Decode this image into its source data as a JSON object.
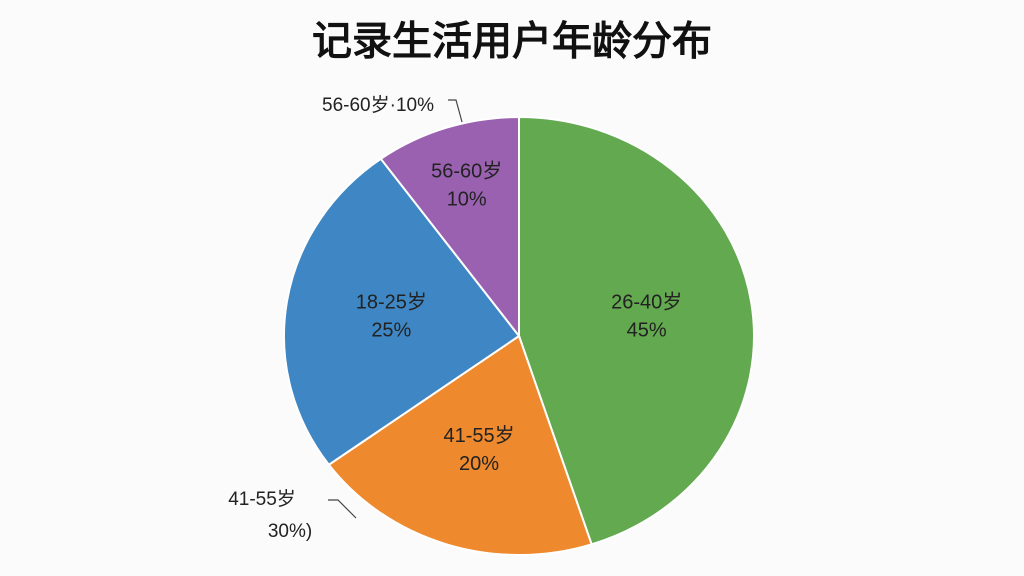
{
  "chart_data": {
    "type": "pie",
    "title": "记录生活用户年龄分布",
    "categories": [
      "26-40岁",
      "41-55岁",
      "18-25岁",
      "56-60岁"
    ],
    "values": [
      45,
      20,
      25,
      10
    ],
    "value_labels": [
      "45%",
      "20%",
      "25%",
      "10%"
    ],
    "colors": [
      "#63a94f",
      "#ee8a2d",
      "#3f87c4",
      "#9a61b0"
    ],
    "annotations": [
      "56-60岁·10%",
      "41-55岁",
      "30%)"
    ]
  }
}
